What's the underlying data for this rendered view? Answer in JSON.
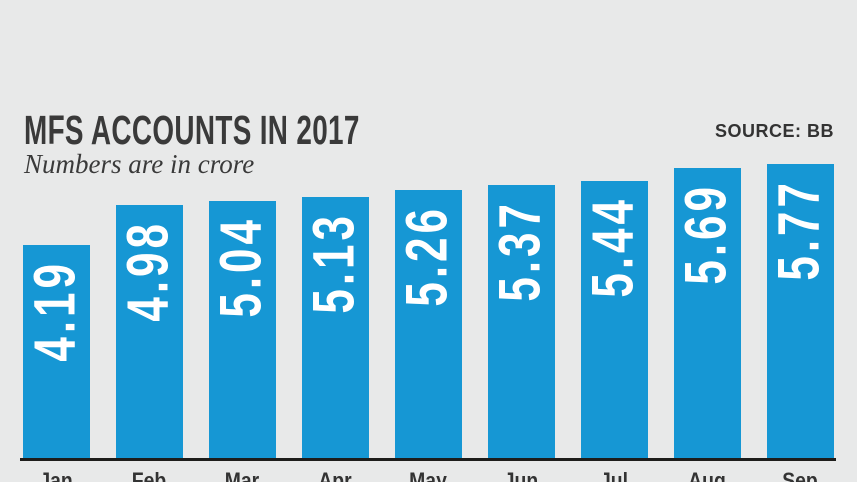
{
  "header": {
    "title": "MFS ACCOUNTS IN 2017",
    "subtitle": "Numbers are in crore",
    "source": "SOURCE: BB"
  },
  "chart_data": {
    "type": "bar",
    "title": "MFS ACCOUNTS IN 2017",
    "subtitle": "Numbers are in crore",
    "source": "SOURCE: BB",
    "categories": [
      "Jan",
      "Feb",
      "Mar",
      "Apr",
      "May",
      "Jun",
      "Jul",
      "Aug",
      "Sep"
    ],
    "values": [
      4.19,
      4.98,
      5.04,
      5.13,
      5.26,
      5.37,
      5.44,
      5.69,
      5.77
    ],
    "xlabel": "",
    "ylabel": "",
    "ylim": [
      0,
      5.77
    ],
    "grid": false,
    "legend": false,
    "value_labels_inside_bars": true,
    "value_label_rotation_degrees": -90,
    "colors": {
      "background": "#e8e9e9",
      "bar": "#1697d4",
      "value_label": "#ffffff",
      "axis_line": "#1d1d1b",
      "title_text": "#3a3a3a",
      "month_label_text": "#333333"
    }
  }
}
